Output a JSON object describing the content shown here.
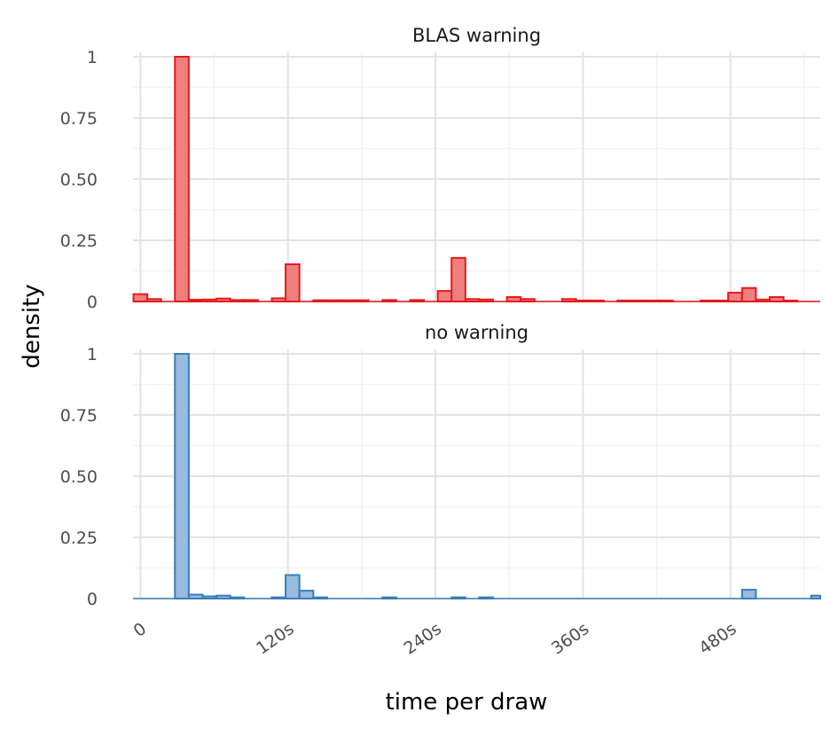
{
  "chart_data": {
    "type": "bar",
    "xlabel": "time per draw",
    "ylabel": "density",
    "x_ticks": [
      {
        "value": 0,
        "label": "0"
      },
      {
        "value": 120,
        "label": "120s"
      },
      {
        "value": 240,
        "label": "240s"
      },
      {
        "value": 360,
        "label": "360s"
      },
      {
        "value": 480,
        "label": "480s"
      }
    ],
    "y_ticks": [
      {
        "value": 0,
        "label": "0"
      },
      {
        "value": 0.25,
        "label": "0.25"
      },
      {
        "value": 0.5,
        "label": "0.50"
      },
      {
        "value": 0.75,
        "label": "0.75"
      },
      {
        "value": 1,
        "label": "1"
      }
    ],
    "xlim": [
      -6,
      553
    ],
    "ylim": [
      0,
      1
    ],
    "grid": true,
    "bin_width": 11.25,
    "panels": [
      {
        "title": "BLAS warning",
        "fill": "#f08080",
        "stroke": "#e41a1c",
        "bins": [
          {
            "x0": -5.6,
            "value": 0.03
          },
          {
            "x0": 5.6,
            "value": 0.01
          },
          {
            "x0": 28.1,
            "value": 1.0
          },
          {
            "x0": 39.4,
            "value": 0.007
          },
          {
            "x0": 50.6,
            "value": 0.008
          },
          {
            "x0": 61.9,
            "value": 0.012
          },
          {
            "x0": 73.1,
            "value": 0.006
          },
          {
            "x0": 84.4,
            "value": 0.006
          },
          {
            "x0": 106.9,
            "value": 0.013
          },
          {
            "x0": 118.1,
            "value": 0.152
          },
          {
            "x0": 140.6,
            "value": 0.005
          },
          {
            "x0": 151.9,
            "value": 0.005
          },
          {
            "x0": 163.1,
            "value": 0.005
          },
          {
            "x0": 174.4,
            "value": 0.005
          },
          {
            "x0": 196.9,
            "value": 0.006
          },
          {
            "x0": 219.4,
            "value": 0.006
          },
          {
            "x0": 241.9,
            "value": 0.043
          },
          {
            "x0": 253.1,
            "value": 0.178
          },
          {
            "x0": 264.4,
            "value": 0.01
          },
          {
            "x0": 275.6,
            "value": 0.008
          },
          {
            "x0": 298.1,
            "value": 0.018
          },
          {
            "x0": 309.4,
            "value": 0.01
          },
          {
            "x0": 343.1,
            "value": 0.01
          },
          {
            "x0": 354.4,
            "value": 0.004
          },
          {
            "x0": 365.6,
            "value": 0.004
          },
          {
            "x0": 388.1,
            "value": 0.004
          },
          {
            "x0": 399.4,
            "value": 0.004
          },
          {
            "x0": 410.6,
            "value": 0.004
          },
          {
            "x0": 421.9,
            "value": 0.004
          },
          {
            "x0": 455.6,
            "value": 0.004
          },
          {
            "x0": 466.9,
            "value": 0.004
          },
          {
            "x0": 478.1,
            "value": 0.036
          },
          {
            "x0": 489.4,
            "value": 0.055
          },
          {
            "x0": 500.6,
            "value": 0.008
          },
          {
            "x0": 511.9,
            "value": 0.018
          },
          {
            "x0": 523.1,
            "value": 0.004
          }
        ]
      },
      {
        "title": "no warning",
        "fill": "#99bbdd",
        "stroke": "#377eb8",
        "bins": [
          {
            "x0": 28.1,
            "value": 1.0
          },
          {
            "x0": 39.4,
            "value": 0.016
          },
          {
            "x0": 50.6,
            "value": 0.009
          },
          {
            "x0": 61.9,
            "value": 0.012
          },
          {
            "x0": 73.1,
            "value": 0.005
          },
          {
            "x0": 106.9,
            "value": 0.005
          },
          {
            "x0": 118.1,
            "value": 0.096
          },
          {
            "x0": 129.4,
            "value": 0.032
          },
          {
            "x0": 140.6,
            "value": 0.005
          },
          {
            "x0": 196.9,
            "value": 0.005
          },
          {
            "x0": 253.1,
            "value": 0.005
          },
          {
            "x0": 275.6,
            "value": 0.005
          },
          {
            "x0": 489.4,
            "value": 0.036
          },
          {
            "x0": 545.6,
            "value": 0.012
          }
        ]
      }
    ]
  }
}
